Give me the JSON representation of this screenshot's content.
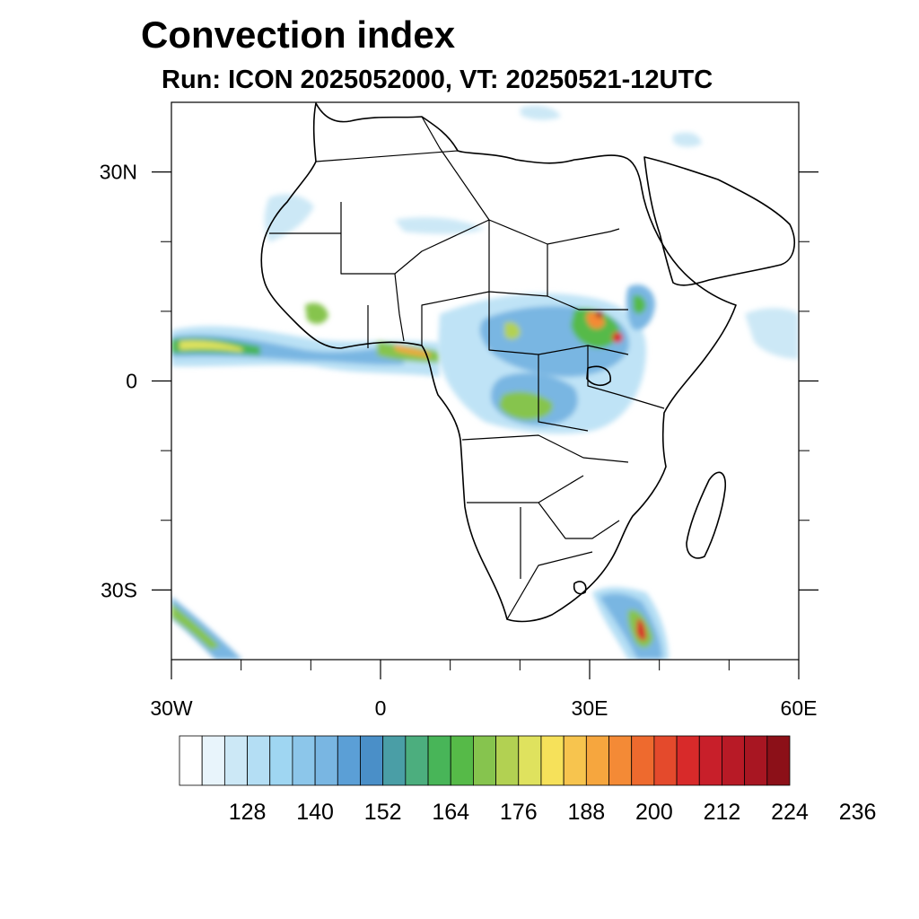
{
  "header": {
    "title": "Convection index",
    "subtitle": "Run: ICON 2025052000,  VT: 20250521-12UTC"
  },
  "map": {
    "region": "Africa",
    "projection": "cylindrical-equidistant",
    "lon_range": [
      -30,
      60
    ],
    "lat_range": [
      -40,
      40
    ],
    "x_tick_labels": [
      {
        "lon": -30,
        "label": "30W"
      },
      {
        "lon": 0,
        "label": "0"
      },
      {
        "lon": 30,
        "label": "30E"
      },
      {
        "lon": 60,
        "label": "60E"
      }
    ],
    "y_tick_labels": [
      {
        "lat": 30,
        "label": "30N"
      },
      {
        "lat": 0,
        "label": "0"
      },
      {
        "lat": -30,
        "label": "30S"
      }
    ],
    "minor_lon_ticks": [
      -20,
      -10,
      10,
      20,
      40,
      50
    ],
    "minor_lat_ticks": [
      20,
      10,
      -10,
      -20
    ],
    "border_color": "#000000"
  },
  "colorbar": {
    "min": 116,
    "step": 4,
    "colors": [
      "#ffffff",
      "#e8f4fb",
      "#cce8f6",
      "#b4def4",
      "#9fd6f2",
      "#8cc6ea",
      "#79b6e2",
      "#5b9fd6",
      "#4a8fc8",
      "#4a9ea6",
      "#4cae7e",
      "#48b558",
      "#56ba48",
      "#86c44e",
      "#b2d152",
      "#dfe25e",
      "#f6e15a",
      "#f7c44e",
      "#f6a63e",
      "#f48a36",
      "#ee6a2e",
      "#e44a2c",
      "#d82a2a",
      "#c81f2a",
      "#b81a26",
      "#a81622",
      "#8c1018"
    ],
    "tick_labels": [
      "128",
      "140",
      "152",
      "164",
      "176",
      "188",
      "200",
      "212",
      "224",
      "236"
    ],
    "tick_values": [
      128,
      140,
      152,
      164,
      176,
      188,
      200,
      212,
      224,
      236
    ]
  }
}
